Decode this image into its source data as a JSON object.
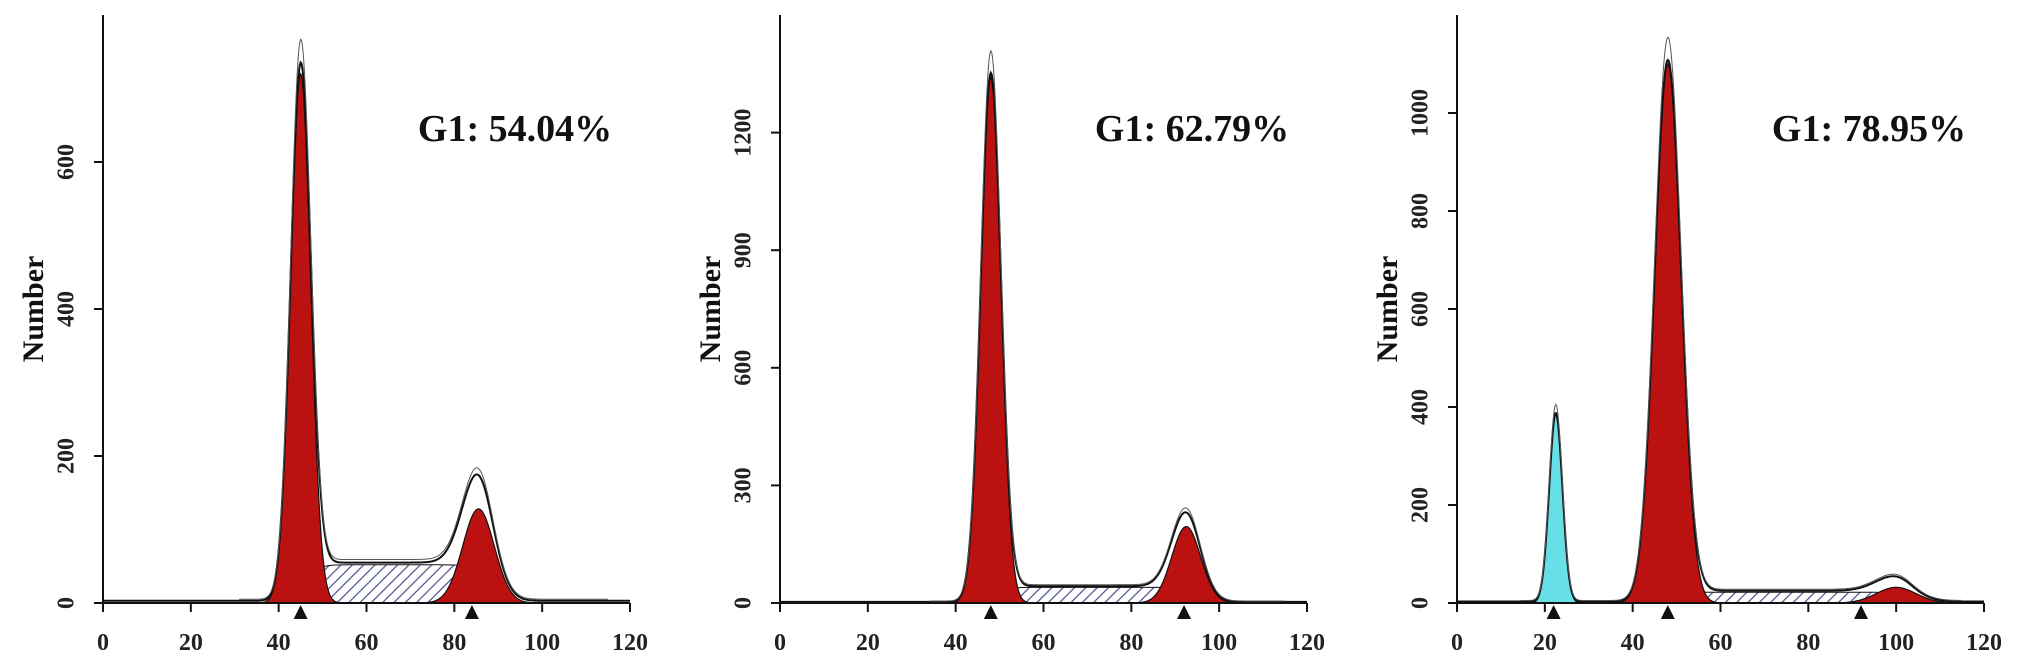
{
  "colors": {
    "g1_fill": "#bb1111",
    "sub_g1_fill": "#66e0e6",
    "s_phase_hatch": "#4a4f8c",
    "outline": "#111111",
    "axis": "#111111"
  },
  "chart_data": [
    {
      "type": "area",
      "title": "",
      "xlabel": "",
      "ylabel": "Number",
      "annotation": "G1: 54.04%",
      "xlim": [
        0,
        120
      ],
      "ylim": [
        0,
        800
      ],
      "xticks": [
        0,
        20,
        40,
        60,
        80,
        100,
        120
      ],
      "yticks": [
        0,
        200,
        400,
        600
      ],
      "marker_positions": [
        45,
        84
      ],
      "series": [
        {
          "kind": "g1_peak",
          "mean": 45,
          "sd": 2.3,
          "height": 720
        },
        {
          "kind": "g2_peak",
          "mean": 85.5,
          "sd": 3.6,
          "height": 128
        },
        {
          "kind": "s_phase",
          "from": 45,
          "to": 85,
          "level": 52
        }
      ]
    },
    {
      "type": "area",
      "title": "",
      "xlabel": "",
      "ylabel": "Number",
      "annotation": "G1: 62.79%",
      "xlim": [
        0,
        120
      ],
      "ylim": [
        0,
        1500
      ],
      "xticks": [
        0,
        20,
        40,
        60,
        80,
        100,
        120
      ],
      "yticks": [
        0,
        300,
        600,
        900,
        1200
      ],
      "marker_positions": [
        48,
        92
      ],
      "series": [
        {
          "kind": "g1_peak",
          "mean": 48,
          "sd": 2.3,
          "height": 1340
        },
        {
          "kind": "g2_peak",
          "mean": 92.5,
          "sd": 3.3,
          "height": 195
        },
        {
          "kind": "s_phase",
          "from": 48,
          "to": 92,
          "level": 40
        }
      ]
    },
    {
      "type": "area",
      "title": "",
      "xlabel": "",
      "ylabel": "Number",
      "annotation": "G1: 78.95%",
      "xlim": [
        0,
        120
      ],
      "ylim": [
        0,
        1200
      ],
      "xticks": [
        0,
        20,
        40,
        60,
        80,
        100,
        120
      ],
      "yticks": [
        0,
        200,
        400,
        600,
        800,
        1000
      ],
      "marker_positions": [
        22,
        48,
        92
      ],
      "series": [
        {
          "kind": "sub_g1_peak",
          "mean": 22.5,
          "sd": 1.5,
          "height": 385
        },
        {
          "kind": "g1_peak",
          "mean": 48,
          "sd": 3.0,
          "height": 1100
        },
        {
          "kind": "g2_peak",
          "mean": 100,
          "sd": 4.5,
          "height": 32
        },
        {
          "kind": "s_phase",
          "from": 48,
          "to": 100,
          "level": 22
        }
      ]
    }
  ]
}
